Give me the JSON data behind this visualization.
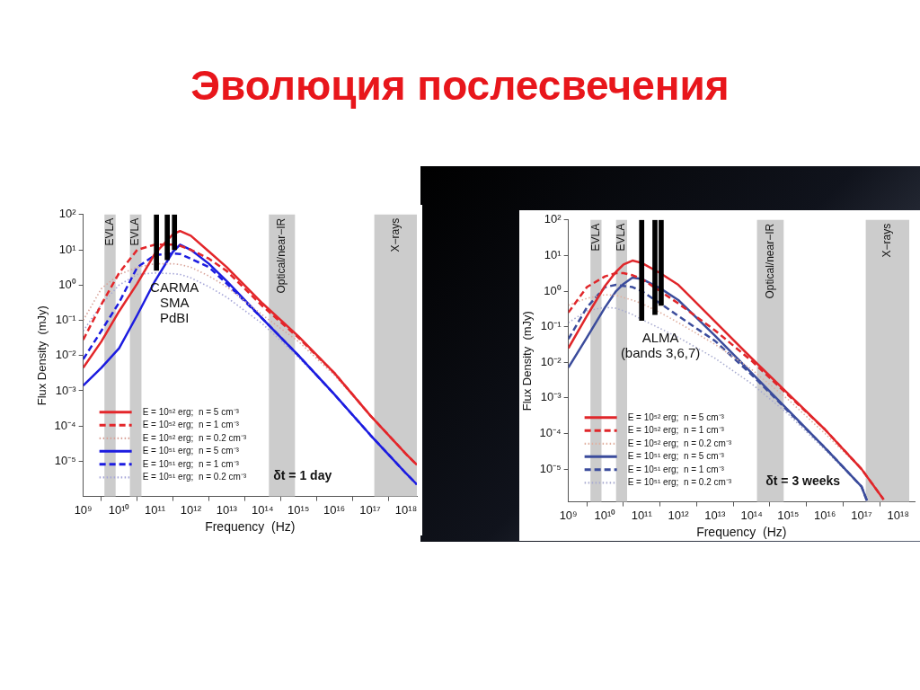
{
  "chart_data": [
    {
      "type": "line",
      "title": "Эволюция послесвечения",
      "xlabel": "Frequency  (Hz)",
      "ylabel": "Flux Density  (mJy)",
      "log": "xy",
      "legend": "bottom left",
      "xlim": [
        1000000000.0,
        2e+18
      ],
      "ylim": [
        1e-06,
        100
      ],
      "xticks": [
        {
          "value": 1000000000.0,
          "label": "10⁹"
        },
        {
          "value": 10000000000.0,
          "label": "10¹⁰"
        },
        {
          "value": 100000000000.0,
          "label": "10¹¹"
        },
        {
          "value": 1000000000000.0,
          "label": "10¹²"
        },
        {
          "value": 10000000000000.0,
          "label": "10¹³"
        },
        {
          "value": 100000000000000.0,
          "label": "10¹⁴"
        },
        {
          "value": 1000000000000000.0,
          "label": "10¹⁵"
        },
        {
          "value": 1e+16,
          "label": "10¹⁶"
        },
        {
          "value": 1e+17,
          "label": "10¹⁷"
        },
        {
          "value": 1e+18,
          "label": "10¹⁸"
        }
      ],
      "yticks": [
        {
          "value": 1e-05,
          "label": "10⁻⁵"
        },
        {
          "value": 0.0001,
          "label": "10⁻⁴"
        },
        {
          "value": 0.001,
          "label": "10⁻³"
        },
        {
          "value": 0.01,
          "label": "10⁻²"
        },
        {
          "value": 0.1,
          "label": "10⁻¹"
        },
        {
          "value": 1,
          "label": "10⁰"
        },
        {
          "value": 10,
          "label": "10¹"
        },
        {
          "value": 100,
          "label": "10²"
        }
      ],
      "x": [
        1000000000.0,
        3200000000.0,
        10000000000.0,
        32000000000.0,
        100000000000.0,
        320000000000.0,
        500000000000.0,
        1000000000000.0,
        3200000000000.0,
        10000000000000.0,
        100000000000000.0,
        1000000000000000.0,
        1e+16,
        1e+17,
        1e+18,
        2e+18
      ],
      "series": [
        {
          "name": "E = 10⁵² erg;  n = 5 cm⁻³",
          "color": "#e3262a",
          "line_style": "solid",
          "values": [
            0.0045,
            0.025,
            0.18,
            1.1,
            7.9,
            28,
            34,
            25,
            8.9,
            3.2,
            0.3,
            0.035,
            0.0032,
            0.0002,
            1.6e-05,
            7.9e-06
          ]
        },
        {
          "name": "E = 10⁵² erg;  n = 1 cm⁻³",
          "color": "#e3262a",
          "line_style": "dashed",
          "values": [
            0.028,
            0.28,
            2.2,
            10,
            14,
            14,
            13,
            10,
            5.6,
            2.5,
            0.25,
            0.032,
            0.0032,
            0.0002,
            1.6e-05,
            7.9e-06
          ]
        },
        {
          "name": "E = 10⁵² erg;  n = 0.2 cm⁻³",
          "color": "#d9a49a",
          "line_style": "dotted",
          "values": [
            0.1,
            0.79,
            2,
            3.2,
            4,
            4,
            3.8,
            3.2,
            1.8,
            0.89,
            0.14,
            0.025,
            0.0028,
            0.0002,
            1.6e-05,
            7.9e-06
          ]
        },
        {
          "name": "E = 10⁵¹ erg;  n = 5 cm⁻³",
          "color": "#1c1ce0",
          "line_style": "solid",
          "values": [
            0.0014,
            0.0045,
            0.016,
            0.14,
            1.3,
            8.9,
            14,
            10,
            4,
            1.3,
            0.11,
            0.01,
            0.00079,
            5.6e-05,
            4.5e-06,
            2.2e-06
          ]
        },
        {
          "name": "E = 10⁵¹ erg;  n = 1 cm⁻³",
          "color": "#1c1ce0",
          "line_style": "dashed",
          "values": [
            0.0079,
            0.05,
            0.32,
            3.2,
            7.1,
            7.9,
            7.6,
            5.6,
            3.2,
            1.1,
            0.11,
            0.01,
            0.00079,
            5.6e-05,
            4.5e-06,
            2.2e-06
          ]
        },
        {
          "name": "E = 10⁵¹ erg;  n = 0.2 cm⁻³",
          "color": "#a7a7d8",
          "line_style": "dotted",
          "values": [
            0.05,
            0.28,
            1,
            2,
            2.2,
            2.1,
            2,
            1.6,
            0.89,
            0.45,
            0.079,
            0.0089,
            0.00079,
            5.6e-05,
            4.5e-06,
            2.2e-06
          ]
        },
        {
          "type": "bar",
          "color": "#000000",
          "x": [
            110000000000.0,
            220000000000.0,
            350000000000.0
          ],
          "base": [
            2.6,
            5.2,
            10
          ],
          "values": [
            97.4,
            94.8,
            90
          ]
        }
      ],
      "bands": [
        {
          "axis": "x",
          "from": 3900000000.0,
          "to": 8000000000.0,
          "label": "EVLA",
          "color": "#cccccc"
        },
        {
          "axis": "x",
          "from": 20000000000.0,
          "to": 42000000000.0,
          "label": "EVLA",
          "color": "#cccccc"
        },
        {
          "axis": "x",
          "from": 150000000000000.0,
          "to": 800000000000000.0,
          "label": "Optical/near−IR",
          "color": "#cccccc"
        },
        {
          "axis": "x",
          "from": 1.3e+17,
          "to": 2e+18,
          "label": "X−rays",
          "color": "#cccccc"
        }
      ],
      "annotations": [
        "CARMA",
        "SMA",
        "PdBI",
        "δt = 1 day"
      ]
    },
    {
      "type": "line",
      "xlabel": "Frequency  (Hz)",
      "ylabel": "Flux Density  (mJy)",
      "log": "xy",
      "legend": "bottom left",
      "xlim": [
        1000000000.0,
        2.8e+18
      ],
      "ylim": [
        1.2e-06,
        100
      ],
      "xticks": [
        {
          "value": 1000000000.0,
          "label": "10⁹"
        },
        {
          "value": 10000000000.0,
          "label": "10¹⁰"
        },
        {
          "value": 100000000000.0,
          "label": "10¹¹"
        },
        {
          "value": 1000000000000.0,
          "label": "10¹²"
        },
        {
          "value": 10000000000000.0,
          "label": "10¹³"
        },
        {
          "value": 100000000000000.0,
          "label": "10¹⁴"
        },
        {
          "value": 1000000000000000.0,
          "label": "10¹⁵"
        },
        {
          "value": 1e+16,
          "label": "10¹⁶"
        },
        {
          "value": 1e+17,
          "label": "10¹⁷"
        },
        {
          "value": 1e+18,
          "label": "10¹⁸"
        }
      ],
      "yticks": [
        {
          "value": 1e-05,
          "label": "10⁻⁵"
        },
        {
          "value": 0.0001,
          "label": "10⁻⁴"
        },
        {
          "value": 0.001,
          "label": "10⁻³"
        },
        {
          "value": 0.01,
          "label": "10⁻²"
        },
        {
          "value": 0.1,
          "label": "10⁻¹"
        },
        {
          "value": 1,
          "label": "10⁰"
        },
        {
          "value": 10,
          "label": "10¹"
        },
        {
          "value": 100,
          "label": "10²"
        }
      ],
      "x": [
        1000000000.0,
        3200000000.0,
        10000000000.0,
        20000000000.0,
        32000000000.0,
        56000000000.0,
        100000000000.0,
        320000000000.0,
        1000000000000.0,
        10000000000000.0,
        100000000000000.0,
        1000000000000000.0,
        1e+16,
        1e+17,
        4e+17
      ],
      "series": [
        {
          "name": "E = 10⁵² erg;  n = 5 cm⁻³",
          "color": "#e0262a",
          "line_style": "solid",
          "values": [
            0.025,
            0.2,
            1.4,
            3.5,
            5.6,
            7.2,
            6.2,
            3.2,
            1.5,
            0.14,
            0.013,
            0.0013,
            0.00013,
            1e-05,
            1.4e-06
          ]
        },
        {
          "name": "E = 10⁵² erg;  n = 1 cm⁻³",
          "color": "#e0262a",
          "line_style": "dashed",
          "values": [
            0.25,
            1.3,
            2.6,
            3.2,
            3.2,
            2.8,
            2.2,
            1,
            0.45,
            0.079,
            0.011,
            0.0012,
            0.00013,
            1e-05,
            1.4e-06
          ]
        },
        {
          "name": "E = 10⁵² erg;  n = 0.2 cm⁻³",
          "color": "#e0b0a0",
          "line_style": "dotted",
          "values": [
            0.4,
            0.63,
            0.79,
            0.76,
            0.66,
            0.56,
            0.45,
            0.25,
            0.13,
            0.032,
            0.0063,
            0.00089,
            0.0001,
            1e-05,
            1.4e-06
          ]
        },
        {
          "name": "E = 10⁵¹ erg;  n = 5 cm⁻³",
          "color": "#3b4c9c",
          "line_style": "solid",
          "x": [
            1000000000.0,
            3200000000.0,
            10000000000.0,
            20000000000.0,
            32000000000.0,
            56000000000.0,
            100000000000.0,
            320000000000.0,
            1000000000000.0,
            10000000000000.0,
            100000000000000.0,
            1000000000000000.0,
            1e+16,
            1e+17,
            1.4e+17
          ],
          "values": [
            0.0071,
            0.05,
            0.35,
            1,
            1.6,
            2.4,
            2.2,
            1.2,
            0.56,
            0.056,
            0.005,
            0.00045,
            4e-05,
            3.2e-06,
            1.3e-06
          ]
        },
        {
          "name": "E = 10⁵¹ erg;  n = 1 cm⁻³",
          "color": "#3b4c9c",
          "line_style": "dashed",
          "x": [
            1000000000.0,
            3200000000.0,
            10000000000.0,
            20000000000.0,
            32000000000.0,
            56000000000.0,
            100000000000.0,
            320000000000.0,
            1000000000000.0,
            10000000000000.0,
            100000000000000.0,
            1000000000000000.0,
            1e+16,
            1e+17,
            1.4e+17
          ],
          "values": [
            0.045,
            0.35,
            1.3,
            1.5,
            1.4,
            1.3,
            1,
            0.45,
            0.2,
            0.04,
            0.0045,
            0.00042,
            4e-05,
            3.2e-06,
            1.3e-06
          ]
        },
        {
          "name": "E = 10⁵¹ erg;  n = 0.2 cm⁻³",
          "color": "#a9acd0",
          "line_style": "dotted",
          "x": [
            1000000000.0,
            3200000000.0,
            10000000000.0,
            20000000000.0,
            32000000000.0,
            56000000000.0,
            100000000000.0,
            320000000000.0,
            1000000000000.0,
            10000000000000.0,
            100000000000000.0,
            1000000000000000.0,
            1e+16,
            1e+17,
            1.4e+17
          ],
          "values": [
            0.13,
            0.28,
            0.35,
            0.33,
            0.28,
            0.22,
            0.16,
            0.089,
            0.05,
            0.013,
            0.0025,
            0.00035,
            3.5e-05,
            3.2e-06,
            1.3e-06
          ]
        },
        {
          "type": "bar",
          "color": "#000000",
          "x": [
            100000000000.0,
            230000000000.0,
            340000000000.0
          ],
          "base": [
            0.15,
            0.22,
            0.4
          ],
          "values": [
            99.85,
            99.78,
            99.6
          ]
        }
      ],
      "bands": [
        {
          "axis": "x",
          "from": 4000000000.0,
          "to": 8000000000.0,
          "label": "EVLA",
          "color": "#cccccc"
        },
        {
          "axis": "x",
          "from": 20000000000.0,
          "to": 40000000000.0,
          "label": "EVLA",
          "color": "#cccccc"
        },
        {
          "axis": "x",
          "from": 140000000000000.0,
          "to": 750000000000000.0,
          "label": "Optical/near−IR",
          "color": "#cccccc"
        },
        {
          "axis": "x",
          "from": 1.3e+17,
          "to": 2e+18,
          "label": "X−rays",
          "color": "#cccccc"
        }
      ],
      "annotations": [
        "ALMA",
        "(bands 3,6,7)",
        "δt = 3 weeks"
      ]
    }
  ]
}
